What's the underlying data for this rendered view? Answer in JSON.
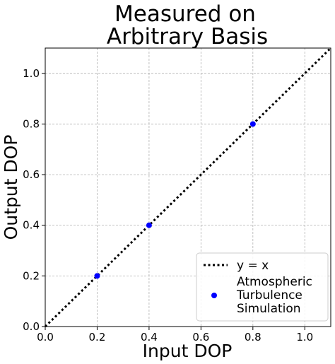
{
  "chart_data": {
    "type": "scatter",
    "title_lines": [
      "Measured on",
      "Arbitrary Basis"
    ],
    "xlabel": "Input DOP",
    "ylabel": "Output DOP",
    "xlim": [
      0.0,
      1.1
    ],
    "ylim": [
      0.0,
      1.1
    ],
    "xticks": [
      "0.0",
      "0.2",
      "0.4",
      "0.6",
      "0.8",
      "1.0"
    ],
    "yticks": [
      "0.0",
      "0.2",
      "0.4",
      "0.6",
      "0.8",
      "1.0"
    ],
    "grid": true,
    "legend_position": "bottom-right",
    "series": [
      {
        "name": "y = x",
        "kind": "line",
        "style": "dotted",
        "color": "#000000",
        "x": [
          0.0,
          1.1
        ],
        "y": [
          0.0,
          1.1
        ]
      },
      {
        "name_lines": [
          "Atmospheric",
          "Turbulence",
          "Simulation"
        ],
        "kind": "scatter",
        "color": "#0000ff",
        "x": [
          0.2,
          0.4,
          0.8
        ],
        "y": [
          0.2,
          0.4,
          0.8
        ]
      }
    ]
  }
}
